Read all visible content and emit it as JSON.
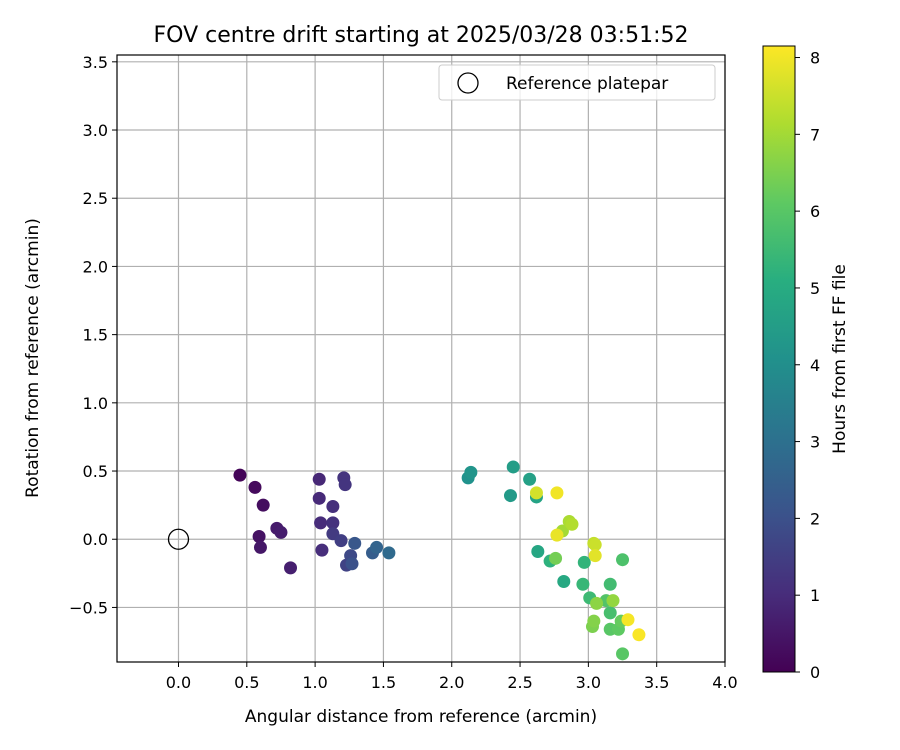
{
  "chart_data": {
    "type": "scatter",
    "title": "FOV centre drift starting at 2025/03/28 03:51:52",
    "xlabel": "Angular distance from reference (arcmin)",
    "ylabel": "Rotation from reference (arcmin)",
    "xlim": [
      -0.45,
      4.0
    ],
    "ylim": [
      -0.9,
      3.55
    ],
    "xticks": [
      "0.0",
      "0.5",
      "1.0",
      "1.5",
      "2.0",
      "2.5",
      "3.0",
      "3.5",
      "4.0"
    ],
    "yticks": [
      "−0.5",
      "0.0",
      "0.5",
      "1.0",
      "1.5",
      "2.0",
      "2.5",
      "3.0",
      "3.5"
    ],
    "grid": true,
    "legend": {
      "placement": "top-right",
      "entries": [
        "Reference platepar"
      ]
    },
    "reference_point": {
      "x": 0.0,
      "y": 0.0,
      "marker": "open-circle"
    },
    "colorbar": {
      "label": "Hours from first FF file",
      "range": [
        0,
        8.15
      ],
      "ticks": [
        "0",
        "1",
        "2",
        "3",
        "4",
        "5",
        "6",
        "7",
        "8"
      ],
      "colormap": "viridis"
    },
    "series": [
      {
        "points": [
          {
            "x": 0.45,
            "y": 0.47,
            "c": 0.1
          },
          {
            "x": 0.56,
            "y": 0.38,
            "c": 0.2
          },
          {
            "x": 0.62,
            "y": 0.25,
            "c": 0.3
          },
          {
            "x": 0.59,
            "y": 0.02,
            "c": 0.4
          },
          {
            "x": 0.6,
            "y": -0.06,
            "c": 0.5
          },
          {
            "x": 0.72,
            "y": 0.08,
            "c": 0.6
          },
          {
            "x": 0.75,
            "y": 0.05,
            "c": 0.65
          },
          {
            "x": 0.82,
            "y": -0.21,
            "c": 0.7
          },
          {
            "x": 1.03,
            "y": 0.44,
            "c": 0.9
          },
          {
            "x": 1.03,
            "y": 0.3,
            "c": 0.95
          },
          {
            "x": 1.04,
            "y": 0.12,
            "c": 1.0
          },
          {
            "x": 1.05,
            "y": -0.08,
            "c": 1.05
          },
          {
            "x": 1.13,
            "y": 0.24,
            "c": 1.1
          },
          {
            "x": 1.13,
            "y": 0.12,
            "c": 1.15
          },
          {
            "x": 1.21,
            "y": 0.45,
            "c": 1.2
          },
          {
            "x": 1.22,
            "y": 0.4,
            "c": 1.25
          },
          {
            "x": 1.13,
            "y": 0.04,
            "c": 1.4
          },
          {
            "x": 1.19,
            "y": -0.01,
            "c": 1.5
          },
          {
            "x": 1.23,
            "y": -0.19,
            "c": 1.6
          },
          {
            "x": 1.26,
            "y": -0.12,
            "c": 1.8
          },
          {
            "x": 1.27,
            "y": -0.18,
            "c": 2.0
          },
          {
            "x": 1.29,
            "y": -0.03,
            "c": 2.2
          },
          {
            "x": 1.42,
            "y": -0.1,
            "c": 2.4
          },
          {
            "x": 1.45,
            "y": -0.06,
            "c": 2.6
          },
          {
            "x": 1.54,
            "y": -0.1,
            "c": 2.8
          },
          {
            "x": 2.12,
            "y": 0.45,
            "c": 4.1
          },
          {
            "x": 2.14,
            "y": 0.49,
            "c": 4.2
          },
          {
            "x": 2.43,
            "y": 0.32,
            "c": 4.4
          },
          {
            "x": 2.45,
            "y": 0.53,
            "c": 4.5
          },
          {
            "x": 2.57,
            "y": 0.44,
            "c": 4.6
          },
          {
            "x": 2.62,
            "y": 0.31,
            "c": 4.7
          },
          {
            "x": 2.63,
            "y": -0.09,
            "c": 4.8
          },
          {
            "x": 2.82,
            "y": -0.31,
            "c": 4.9
          },
          {
            "x": 2.72,
            "y": -0.16,
            "c": 5.2
          },
          {
            "x": 2.97,
            "y": -0.17,
            "c": 5.3
          },
          {
            "x": 2.96,
            "y": -0.33,
            "c": 5.4
          },
          {
            "x": 3.01,
            "y": -0.43,
            "c": 5.5
          },
          {
            "x": 3.16,
            "y": -0.33,
            "c": 5.6
          },
          {
            "x": 3.16,
            "y": -0.54,
            "c": 5.7
          },
          {
            "x": 3.25,
            "y": -0.15,
            "c": 5.8
          },
          {
            "x": 3.13,
            "y": -0.45,
            "c": 5.9
          },
          {
            "x": 3.16,
            "y": -0.66,
            "c": 6.0
          },
          {
            "x": 3.25,
            "y": -0.84,
            "c": 6.0
          },
          {
            "x": 3.22,
            "y": -0.66,
            "c": 6.1
          },
          {
            "x": 3.24,
            "y": -0.6,
            "c": 6.2
          },
          {
            "x": 2.76,
            "y": -0.14,
            "c": 6.4
          },
          {
            "x": 3.03,
            "y": -0.64,
            "c": 6.5
          },
          {
            "x": 3.04,
            "y": -0.6,
            "c": 6.6
          },
          {
            "x": 3.06,
            "y": -0.47,
            "c": 6.7
          },
          {
            "x": 3.18,
            "y": -0.45,
            "c": 6.8
          },
          {
            "x": 2.81,
            "y": 0.06,
            "c": 7.0
          },
          {
            "x": 2.86,
            "y": 0.13,
            "c": 7.1
          },
          {
            "x": 2.88,
            "y": 0.11,
            "c": 7.2
          },
          {
            "x": 3.04,
            "y": -0.03,
            "c": 7.4
          },
          {
            "x": 3.05,
            "y": -0.04,
            "c": 7.5
          },
          {
            "x": 2.62,
            "y": 0.34,
            "c": 7.6
          },
          {
            "x": 3.05,
            "y": -0.12,
            "c": 7.8
          },
          {
            "x": 2.77,
            "y": 0.03,
            "c": 7.9
          },
          {
            "x": 2.77,
            "y": 0.34,
            "c": 8.0
          },
          {
            "x": 3.29,
            "y": -0.59,
            "c": 8.05
          },
          {
            "x": 3.37,
            "y": -0.7,
            "c": 8.1
          }
        ]
      }
    ]
  }
}
